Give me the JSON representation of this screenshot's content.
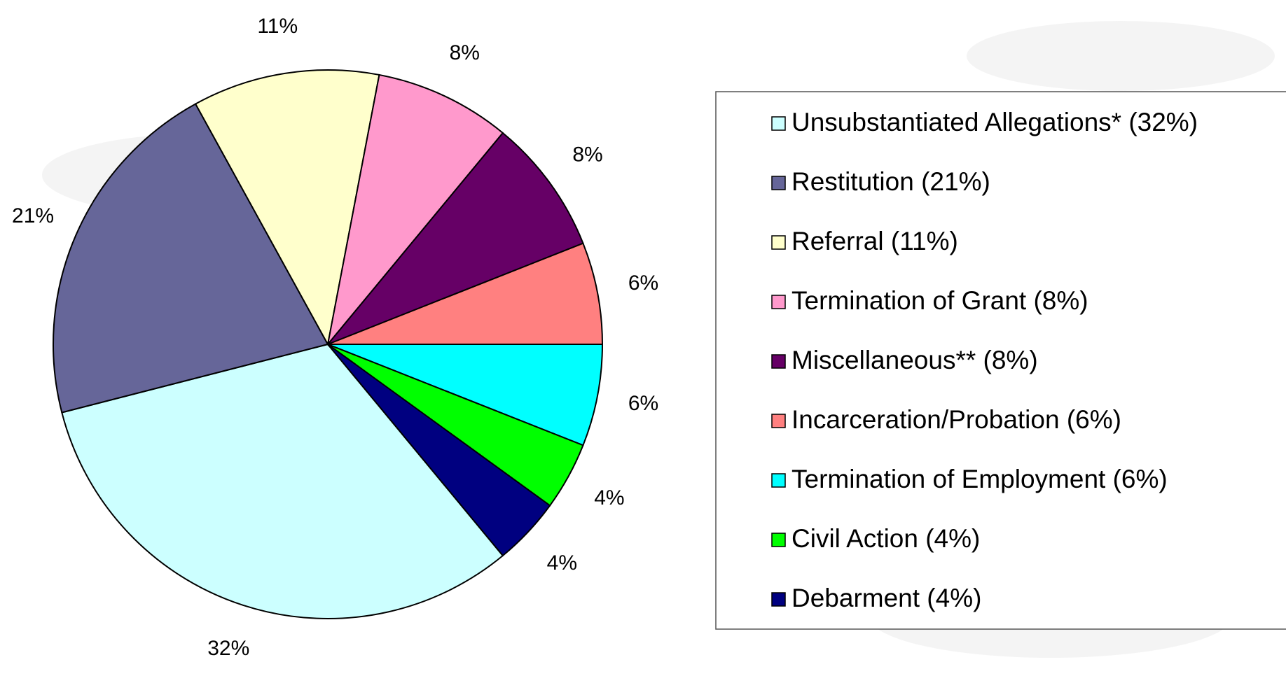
{
  "chart_data": {
    "type": "pie",
    "categories": [
      "Unsubstantiated Allegations* (32%)",
      "Restitution (21%)",
      "Referral (11%)",
      "Termination of Grant (8%)",
      "Miscellaneous** (8%)",
      "Incarceration/Probation (6%)",
      "Termination of Employment (6%)",
      "Civil Action (4%)",
      "Debarment (4%)"
    ],
    "values": [
      32,
      21,
      11,
      8,
      8,
      6,
      6,
      4,
      4
    ],
    "value_labels": [
      "32%",
      "21%",
      "11%",
      "8%",
      "8%",
      "6%",
      "6%",
      "4%",
      "4%"
    ],
    "colors": [
      "#ccffff",
      "#666699",
      "#ffffcc",
      "#ff99cc",
      "#660066",
      "#ff8080",
      "#00ffff",
      "#00ff00",
      "#000080"
    ]
  }
}
